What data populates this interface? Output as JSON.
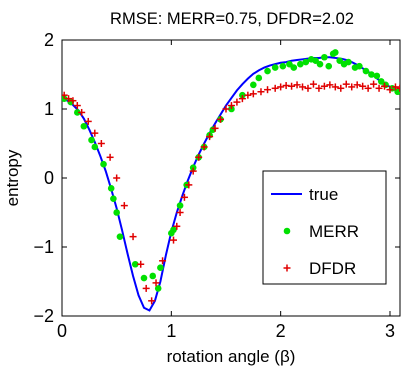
{
  "chart_data": {
    "type": "scatter",
    "title": "RMSE: MERR=0.75, DFDR=2.02",
    "xlabel": "rotation angle (β)",
    "ylabel": "entropy",
    "xlim": [
      0,
      3.0916
    ],
    "ylim": [
      -2,
      2
    ],
    "xticks": [
      0,
      1,
      2,
      3
    ],
    "yticks": [
      -2,
      -1,
      0,
      1,
      2
    ],
    "xtick_labels": [
      "0",
      "1",
      "2",
      "3"
    ],
    "ytick_labels": [
      "−2",
      "−1",
      "0",
      "1",
      "2"
    ],
    "grid": false,
    "legend_position": "lower right",
    "series": [
      {
        "name": "true",
        "kind": "line",
        "color": "#0000ff",
        "x": [
          0.0,
          0.05,
          0.1,
          0.15,
          0.2,
          0.25,
          0.3,
          0.35,
          0.4,
          0.45,
          0.5,
          0.55,
          0.6,
          0.65,
          0.7,
          0.75,
          0.8,
          0.85,
          0.9,
          0.95,
          1.0,
          1.05,
          1.1,
          1.15,
          1.2,
          1.25,
          1.3,
          1.35,
          1.4,
          1.45,
          1.5,
          1.55,
          1.6,
          1.65,
          1.7,
          1.75,
          1.8,
          1.85,
          1.9,
          1.95,
          2.0,
          2.05,
          2.1,
          2.15,
          2.2,
          2.25,
          2.3,
          2.35,
          2.4,
          2.45,
          2.5,
          2.55,
          2.6,
          2.65,
          2.7,
          2.75,
          2.8,
          2.85,
          2.9,
          2.95,
          3.0,
          3.05,
          3.09
        ],
        "y": [
          1.15,
          1.12,
          1.06,
          0.98,
          0.86,
          0.7,
          0.52,
          0.32,
          0.1,
          -0.16,
          -0.44,
          -0.76,
          -1.1,
          -1.42,
          -1.7,
          -1.88,
          -1.92,
          -1.78,
          -1.5,
          -1.12,
          -0.78,
          -0.5,
          -0.26,
          -0.04,
          0.16,
          0.34,
          0.5,
          0.65,
          0.79,
          0.92,
          1.05,
          1.16,
          1.27,
          1.36,
          1.44,
          1.51,
          1.56,
          1.6,
          1.63,
          1.65,
          1.67,
          1.68,
          1.7,
          1.71,
          1.72,
          1.73,
          1.74,
          1.74,
          1.75,
          1.75,
          1.74,
          1.73,
          1.71,
          1.68,
          1.64,
          1.59,
          1.54,
          1.48,
          1.42,
          1.37,
          1.32,
          1.27,
          1.24
        ]
      },
      {
        "name": "MERR",
        "kind": "scatter",
        "marker": "dot",
        "color": "#00e000",
        "x": [
          0.02,
          0.08,
          0.14,
          0.2,
          0.27,
          0.3,
          0.38,
          0.45,
          0.47,
          0.5,
          0.53,
          0.67,
          0.75,
          0.83,
          0.88,
          0.9,
          1.0,
          1.02,
          1.08,
          1.14,
          1.2,
          1.25,
          1.3,
          1.35,
          1.38,
          1.45,
          1.55,
          1.65,
          1.75,
          1.8,
          1.88,
          1.95,
          2.02,
          2.08,
          2.12,
          2.18,
          2.23,
          2.28,
          2.32,
          2.36,
          2.4,
          2.44,
          2.48,
          2.5,
          2.54,
          2.58,
          2.62,
          2.68,
          2.72,
          2.78,
          2.83,
          2.88,
          2.92,
          2.96,
          3.02,
          3.07
        ],
        "y": [
          1.15,
          1.1,
          0.95,
          0.75,
          0.55,
          0.45,
          0.2,
          -0.15,
          -0.3,
          -0.5,
          -0.85,
          -1.25,
          -1.45,
          -1.42,
          -1.6,
          -1.3,
          -0.8,
          -0.75,
          -0.4,
          -0.1,
          0.15,
          0.3,
          0.45,
          0.62,
          0.7,
          0.85,
          1.0,
          1.2,
          1.35,
          1.45,
          1.55,
          1.6,
          1.62,
          1.65,
          1.6,
          1.65,
          1.68,
          1.72,
          1.7,
          1.65,
          1.75,
          1.62,
          1.8,
          1.82,
          1.7,
          1.65,
          1.68,
          1.6,
          1.62,
          1.55,
          1.5,
          1.48,
          1.4,
          1.35,
          1.3,
          1.25
        ]
      },
      {
        "name": "DFDR",
        "kind": "scatter",
        "marker": "plus",
        "color": "#e00000",
        "x": [
          0.02,
          0.06,
          0.1,
          0.14,
          0.18,
          0.24,
          0.3,
          0.36,
          0.44,
          0.5,
          0.57,
          0.65,
          0.72,
          0.77,
          0.82,
          0.86,
          0.92,
          1.02,
          1.05,
          1.08,
          1.12,
          1.16,
          1.2,
          1.25,
          1.3,
          1.35,
          1.4,
          1.45,
          1.5,
          1.55,
          1.6,
          1.65,
          1.7,
          1.75,
          1.82,
          1.88,
          1.95,
          2.0,
          2.05,
          2.1,
          2.15,
          2.2,
          2.25,
          2.3,
          2.35,
          2.4,
          2.45,
          2.5,
          2.55,
          2.6,
          2.65,
          2.7,
          2.75,
          2.8,
          2.85,
          2.9,
          2.95,
          3.0,
          3.05,
          3.09
        ],
        "y": [
          1.2,
          1.15,
          1.12,
          1.05,
          0.95,
          0.82,
          0.65,
          0.5,
          0.3,
          0.0,
          -0.4,
          -0.85,
          -1.25,
          -1.6,
          -1.78,
          -1.52,
          -1.2,
          -0.9,
          -0.7,
          -0.5,
          -0.28,
          -0.1,
          0.1,
          0.3,
          0.45,
          0.6,
          0.72,
          0.85,
          1.0,
          1.05,
          1.1,
          1.15,
          1.2,
          1.22,
          1.25,
          1.28,
          1.3,
          1.32,
          1.34,
          1.33,
          1.35,
          1.32,
          1.3,
          1.36,
          1.3,
          1.33,
          1.35,
          1.32,
          1.3,
          1.36,
          1.32,
          1.35,
          1.33,
          1.3,
          1.36,
          1.3,
          1.33,
          1.28,
          1.32,
          1.3
        ]
      }
    ]
  }
}
